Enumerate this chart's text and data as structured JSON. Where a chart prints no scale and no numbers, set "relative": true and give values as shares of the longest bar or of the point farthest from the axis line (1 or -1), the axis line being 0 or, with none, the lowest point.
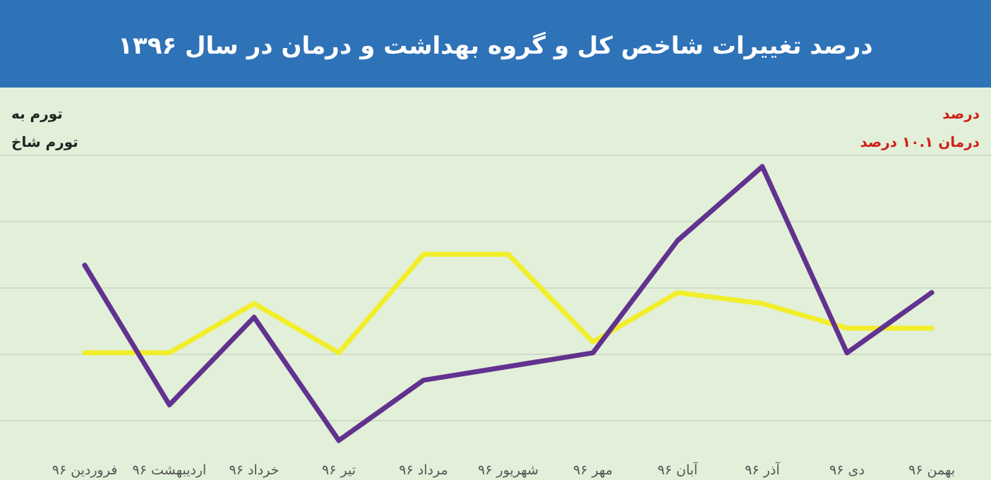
{
  "chart_data": {
    "type": "line",
    "title": "درصد تغییرات شاخص کل و گروه بهداشت و درمان در سال ۱۳۹۶",
    "relative": true,
    "grid": "y",
    "marker": "none",
    "line_style": "solid",
    "categories": [
      "فروردین ۹۶",
      "اردیبهشت ۹۶",
      "خرداد ۹۶",
      "تیر ۹۶",
      "مرداد ۹۶",
      "شهریور ۹۶",
      "مهر ۹۶",
      "آبان ۹۶",
      "آذر ۹۶",
      "دی ۹۶",
      "بهمن ۹۶"
    ],
    "series": [
      {
        "color": "#f2ee2a",
        "values": [
          0.32,
          0.32,
          0.5,
          0.32,
          0.68,
          0.68,
          0.36,
          0.54,
          0.5,
          0.41,
          0.41
        ]
      },
      {
        "color": "#62328f",
        "values": [
          0.64,
          0.13,
          0.45,
          0,
          0.22,
          0.27,
          0.32,
          0.73,
          1,
          0.32,
          0.54
        ]
      }
    ],
    "annotations": [
      "تورم به",
      "تورم شاخ",
      "درصد",
      "درمان ۱۰.۱ درصد"
    ]
  }
}
